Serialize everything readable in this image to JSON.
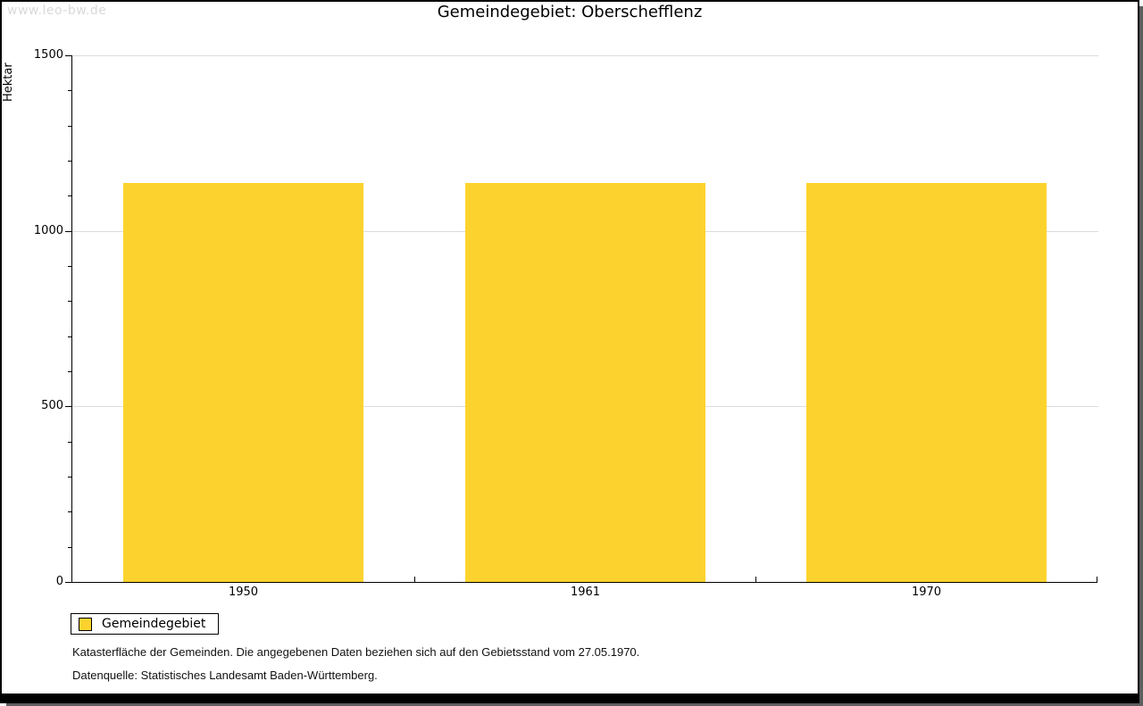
{
  "watermark": "www.leo-bw.de",
  "title": "Gemeindegebiet: Oberschefflenz",
  "chart_data": {
    "type": "bar",
    "title": "Gemeindegebiet: Oberschefflenz",
    "categories": [
      "1950",
      "1961",
      "1970"
    ],
    "series": [
      {
        "name": "Gemeindegebiet",
        "values": [
          1137,
          1137,
          1137
        ]
      }
    ],
    "xlabel": "",
    "ylabel": "Hektar",
    "ylim": [
      0,
      1500
    ],
    "ytick_major": [
      0,
      500,
      1000,
      1500
    ],
    "ytick_minor_step": 100,
    "grid": "horizontal-major",
    "legend_position": "bottom-left",
    "bar_color": "#fcd32e",
    "gridline_color": "#dcdcdc",
    "axis_color": "#000000"
  },
  "legend": {
    "items": [
      {
        "label": "Gemeindegebiet",
        "color": "#fcd32e"
      }
    ]
  },
  "footnotes": [
    "Katasterfläche der Gemeinden. Die angegebenen Daten beziehen sich auf den Gebietsstand vom 27.05.1970.",
    "Datenquelle: Statistisches Landesamt Baden-Württemberg."
  ]
}
